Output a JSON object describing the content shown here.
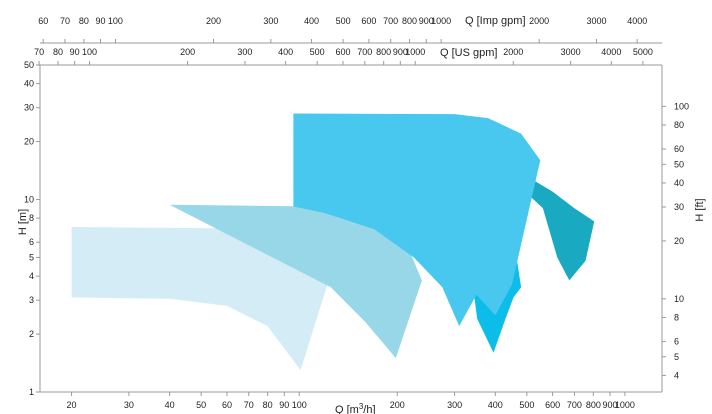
{
  "chart_data": {
    "type": "area",
    "scale": "log-log",
    "grid": false,
    "legend": "none",
    "axes": {
      "x_bottom": {
        "label_main": "Q [m",
        "label_sup": "3",
        "label_tail": "/h]",
        "range": [
          16,
          1300
        ],
        "ticks": [
          {
            "value": 20,
            "label": "20"
          },
          {
            "value": 30,
            "label": "30"
          },
          {
            "value": 40,
            "label": "40"
          },
          {
            "value": 50,
            "label": "50"
          },
          {
            "value": 60,
            "label": "60"
          },
          {
            "value": 70,
            "label": "70"
          },
          {
            "value": 80,
            "label": "80"
          },
          {
            "value": 90,
            "label": "90"
          },
          {
            "value": 100,
            "label": "100"
          },
          {
            "value": 200,
            "label": "200"
          },
          {
            "value": 300,
            "label": "300"
          },
          {
            "value": 400,
            "label": "400"
          },
          {
            "value": 500,
            "label": "500"
          },
          {
            "value": 600,
            "label": "600"
          },
          {
            "value": 700,
            "label": "700"
          },
          {
            "value": 800,
            "label": "800"
          },
          {
            "value": 900,
            "label": "900"
          },
          {
            "value": 1000,
            "label": "1000"
          }
        ]
      },
      "x_top_us": {
        "label": "Q [US gpm]",
        "factor": 4.4029,
        "ticks": [
          {
            "value": 70,
            "label": "70"
          },
          {
            "value": 80,
            "label": "80"
          },
          {
            "value": 90,
            "label": "90"
          },
          {
            "value": 100,
            "label": "100"
          },
          {
            "value": 200,
            "label": "200"
          },
          {
            "value": 300,
            "label": "300"
          },
          {
            "value": 400,
            "label": "400"
          },
          {
            "value": 500,
            "label": "500"
          },
          {
            "value": 600,
            "label": "600"
          },
          {
            "value": 700,
            "label": "700"
          },
          {
            "value": 800,
            "label": "800"
          },
          {
            "value": 900,
            "label": "900"
          },
          {
            "value": 1000,
            "label": "1000"
          },
          {
            "value": 2000,
            "label": "2000"
          },
          {
            "value": 3000,
            "label": "3000"
          },
          {
            "value": 4000,
            "label": "4000"
          },
          {
            "value": 5000,
            "label": "5000"
          }
        ]
      },
      "x_top_imp": {
        "label": "Q [Imp gpm]",
        "factor": 3.6662,
        "ticks": [
          {
            "value": 60,
            "label": "60"
          },
          {
            "value": 70,
            "label": "70"
          },
          {
            "value": 80,
            "label": "80"
          },
          {
            "value": 90,
            "label": "90"
          },
          {
            "value": 100,
            "label": "100"
          },
          {
            "value": 200,
            "label": "200"
          },
          {
            "value": 300,
            "label": "300"
          },
          {
            "value": 400,
            "label": "400"
          },
          {
            "value": 500,
            "label": "500"
          },
          {
            "value": 600,
            "label": "600"
          },
          {
            "value": 700,
            "label": "700"
          },
          {
            "value": 800,
            "label": "800"
          },
          {
            "value": 900,
            "label": "900"
          },
          {
            "value": 1000,
            "label": "1000"
          },
          {
            "value": 2000,
            "label": "2000"
          },
          {
            "value": 3000,
            "label": "3000"
          },
          {
            "value": 4000,
            "label": "4000"
          }
        ]
      },
      "y_left": {
        "label": "H [m]",
        "range": [
          1,
          50
        ],
        "ticks": [
          {
            "value": 1,
            "label": "1"
          },
          {
            "value": 2,
            "label": "2"
          },
          {
            "value": 3,
            "label": "3"
          },
          {
            "value": 4,
            "label": "4"
          },
          {
            "value": 5,
            "label": "5"
          },
          {
            "value": 6,
            "label": "6"
          },
          {
            "value": 8,
            "label": "8"
          },
          {
            "value": 10,
            "label": "10"
          },
          {
            "value": 20,
            "label": "20"
          },
          {
            "value": 30,
            "label": "30"
          },
          {
            "value": 40,
            "label": "40"
          },
          {
            "value": 50,
            "label": "50"
          }
        ]
      },
      "y_right": {
        "label": "H [ft]",
        "factor": 3.2808,
        "ticks": [
          {
            "value": 4,
            "label": "4"
          },
          {
            "value": 5,
            "label": "5"
          },
          {
            "value": 6,
            "label": "6"
          },
          {
            "value": 8,
            "label": "8"
          },
          {
            "value": 10,
            "label": "10"
          },
          {
            "value": 20,
            "label": "20"
          },
          {
            "value": 30,
            "label": "30"
          },
          {
            "value": 40,
            "label": "40"
          },
          {
            "value": 50,
            "label": "50"
          },
          {
            "value": 60,
            "label": "60"
          },
          {
            "value": 80,
            "label": "80"
          },
          {
            "value": 100,
            "label": "100"
          }
        ]
      }
    },
    "series": [
      {
        "color": "#d3ecf5",
        "points": [
          [
            20,
            3.1
          ],
          [
            20,
            7.2
          ],
          [
            55,
            7.1
          ],
          [
            85,
            6.5
          ],
          [
            105,
            5.2
          ],
          [
            122,
            3.6
          ],
          [
            101,
            1.3
          ],
          [
            80,
            2.2
          ],
          [
            60,
            2.8
          ],
          [
            40,
            3.05
          ]
        ]
      },
      {
        "color": "#97d7e7",
        "points": [
          [
            40,
            9.4
          ],
          [
            110,
            9.2
          ],
          [
            165,
            8.2
          ],
          [
            210,
            6.3
          ],
          [
            238,
            3.8
          ],
          [
            198,
            1.5
          ],
          [
            160,
            2.3
          ],
          [
            125,
            3.5
          ]
        ]
      },
      {
        "color": "#0bbde8",
        "points": [
          [
            300,
            7.5
          ],
          [
            410,
            7.0
          ],
          [
            460,
            5.6
          ],
          [
            480,
            3.5
          ],
          [
            455,
            3.1
          ],
          [
            430,
            2.4
          ],
          [
            395,
            1.6
          ],
          [
            352,
            2.4
          ],
          [
            330,
            5.5
          ]
        ]
      },
      {
        "color": "#19a9c1",
        "points": [
          [
            420,
            13.0
          ],
          [
            500,
            13.2
          ],
          [
            600,
            11.0
          ],
          [
            700,
            9.0
          ],
          [
            805,
            7.7
          ],
          [
            757,
            4.8
          ],
          [
            675,
            3.8
          ],
          [
            620,
            5.0
          ],
          [
            560,
            9.0
          ],
          [
            480,
            11.5
          ]
        ]
      },
      {
        "color": "#48c8ee",
        "points": [
          [
            96,
            28.0
          ],
          [
            300,
            27.8
          ],
          [
            380,
            26.5
          ],
          [
            480,
            22.0
          ],
          [
            550,
            16.0
          ],
          [
            450,
            3.6
          ],
          [
            400,
            2.5
          ],
          [
            350,
            3.2
          ],
          [
            310,
            2.2
          ],
          [
            275,
            3.5
          ],
          [
            225,
            5.0
          ],
          [
            170,
            7.0
          ],
          [
            120,
            8.5
          ],
          [
            96,
            9.2
          ]
        ]
      }
    ]
  }
}
